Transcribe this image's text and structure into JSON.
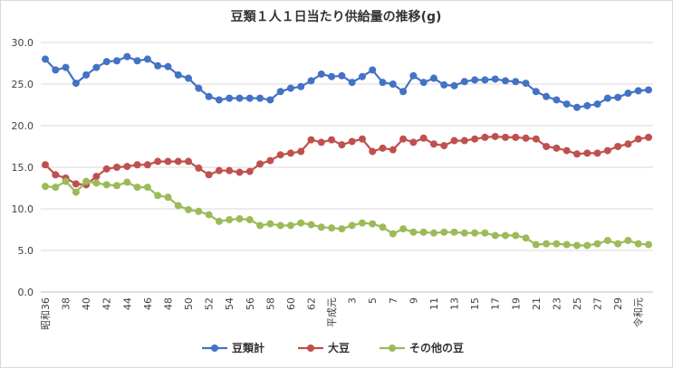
{
  "chart_data": {
    "type": "line",
    "title": "豆類１人１日当たり供給量の推移(g)",
    "xlabel": "",
    "ylabel": "",
    "ylim": [
      0,
      30
    ],
    "yticks": [
      "0.0",
      "5.0",
      "10.0",
      "15.0",
      "20.0",
      "25.0",
      "30.0"
    ],
    "grid": true,
    "legend_position": "bottom",
    "x_tick_labels": [
      {
        "index": 0,
        "label": "昭和36"
      },
      {
        "index": 2,
        "label": "38"
      },
      {
        "index": 4,
        "label": "40"
      },
      {
        "index": 6,
        "label": "42"
      },
      {
        "index": 8,
        "label": "44"
      },
      {
        "index": 10,
        "label": "46"
      },
      {
        "index": 12,
        "label": "48"
      },
      {
        "index": 14,
        "label": "50"
      },
      {
        "index": 16,
        "label": "52"
      },
      {
        "index": 18,
        "label": "54"
      },
      {
        "index": 20,
        "label": "56"
      },
      {
        "index": 22,
        "label": "58"
      },
      {
        "index": 24,
        "label": "60"
      },
      {
        "index": 26,
        "label": "62"
      },
      {
        "index": 28,
        "label": "平成元"
      },
      {
        "index": 30,
        "label": "3"
      },
      {
        "index": 32,
        "label": "5"
      },
      {
        "index": 34,
        "label": "7"
      },
      {
        "index": 36,
        "label": "9"
      },
      {
        "index": 38,
        "label": "11"
      },
      {
        "index": 40,
        "label": "13"
      },
      {
        "index": 42,
        "label": "15"
      },
      {
        "index": 44,
        "label": "17"
      },
      {
        "index": 46,
        "label": "19"
      },
      {
        "index": 48,
        "label": "21"
      },
      {
        "index": 50,
        "label": "23"
      },
      {
        "index": 52,
        "label": "25"
      },
      {
        "index": 54,
        "label": "27"
      },
      {
        "index": 56,
        "label": "29"
      },
      {
        "index": 58,
        "label": "令和元"
      }
    ],
    "series": [
      {
        "name": "豆類計",
        "color": "#4472c4",
        "values": [
          28.0,
          26.7,
          27.0,
          25.1,
          26.1,
          27.0,
          27.7,
          27.8,
          28.3,
          27.8,
          28.0,
          27.2,
          27.1,
          26.1,
          25.7,
          24.5,
          23.5,
          23.1,
          23.3,
          23.3,
          23.3,
          23.3,
          23.1,
          24.1,
          24.5,
          24.7,
          25.4,
          26.2,
          25.9,
          26.0,
          25.2,
          25.9,
          26.7,
          25.2,
          25.0,
          24.1,
          26.0,
          25.2,
          25.7,
          24.9,
          24.8,
          25.3,
          25.5,
          25.5,
          25.6,
          25.4,
          25.3,
          25.1,
          24.1,
          23.5,
          23.1,
          22.6,
          22.2,
          22.4,
          22.6,
          23.3,
          23.4,
          23.9,
          24.2,
          24.3
        ]
      },
      {
        "name": "大豆",
        "color": "#c0504d",
        "values": [
          15.3,
          14.1,
          13.7,
          13.0,
          12.9,
          13.9,
          14.8,
          15.0,
          15.1,
          15.3,
          15.3,
          15.7,
          15.7,
          15.7,
          15.7,
          14.9,
          14.1,
          14.6,
          14.6,
          14.4,
          14.5,
          15.4,
          15.8,
          16.5,
          16.7,
          16.9,
          18.3,
          18.0,
          18.3,
          17.7,
          18.1,
          18.4,
          16.9,
          17.3,
          17.1,
          18.4,
          18.0,
          18.5,
          17.8,
          17.6,
          18.2,
          18.2,
          18.4,
          18.6,
          18.7,
          18.6,
          18.6,
          18.5,
          18.4,
          17.5,
          17.3,
          17.0,
          16.6,
          16.7,
          16.7,
          17.0,
          17.5,
          17.8,
          18.4,
          18.6
        ]
      },
      {
        "name": "その他の豆",
        "color": "#9bbb59",
        "values": [
          12.7,
          12.6,
          13.3,
          12.0,
          13.3,
          13.1,
          12.9,
          12.8,
          13.2,
          12.6,
          12.6,
          11.6,
          11.4,
          10.4,
          9.9,
          9.7,
          9.3,
          8.5,
          8.7,
          8.8,
          8.7,
          8.0,
          8.2,
          8.0,
          8.0,
          8.3,
          8.1,
          7.8,
          7.7,
          7.6,
          8.0,
          8.3,
          8.2,
          7.8,
          7.0,
          7.6,
          7.2,
          7.2,
          7.1,
          7.2,
          7.2,
          7.1,
          7.1,
          7.1,
          6.8,
          6.8,
          6.8,
          6.5,
          5.7,
          5.8,
          5.8,
          5.7,
          5.6,
          5.6,
          5.8,
          6.2,
          5.8,
          6.2,
          5.8,
          5.7
        ]
      }
    ]
  }
}
